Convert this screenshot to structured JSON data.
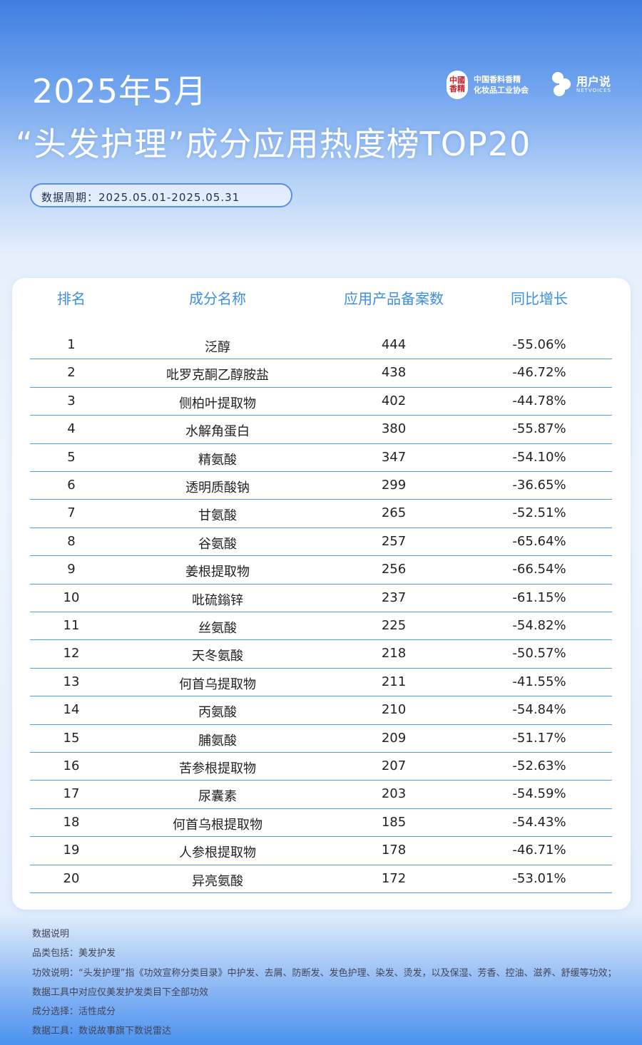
{
  "header": {
    "title_line1": "2025年5月",
    "title_line2": "“头发护理”成分应用热度榜TOP20",
    "period": "数据周期：2025.05.01-2025.05.31"
  },
  "logos": {
    "org_seal": "中国香精",
    "org_name_line1": "中国香料香精",
    "org_name_line2": "化妆品工业协会",
    "brand_name": "用户说",
    "brand_en": "NETVOICES"
  },
  "table": {
    "columns": [
      "排名",
      "成分名称",
      "应用产品备案数",
      "同比增长"
    ],
    "rows": [
      [
        "1",
        "泛醇",
        "444",
        "-55.06%"
      ],
      [
        "2",
        "吡罗克酮乙醇胺盐",
        "438",
        "-46.72%"
      ],
      [
        "3",
        "侧柏叶提取物",
        "402",
        "-44.78%"
      ],
      [
        "4",
        "水解角蛋白",
        "380",
        "-55.87%"
      ],
      [
        "5",
        "精氨酸",
        "347",
        "-54.10%"
      ],
      [
        "6",
        "透明质酸钠",
        "299",
        "-36.65%"
      ],
      [
        "7",
        "甘氨酸",
        "265",
        "-52.51%"
      ],
      [
        "8",
        "谷氨酸",
        "257",
        "-65.64%"
      ],
      [
        "9",
        "姜根提取物",
        "256",
        "-66.54%"
      ],
      [
        "10",
        "吡硫鎓锌",
        "237",
        "-61.15%"
      ],
      [
        "11",
        "丝氨酸",
        "225",
        "-54.82%"
      ],
      [
        "12",
        "天冬氨酸",
        "218",
        "-50.57%"
      ],
      [
        "13",
        "何首乌提取物",
        "211",
        "-41.55%"
      ],
      [
        "14",
        "丙氨酸",
        "210",
        "-54.84%"
      ],
      [
        "15",
        "脯氨酸",
        "209",
        "-51.17%"
      ],
      [
        "16",
        "苦参根提取物",
        "207",
        "-52.63%"
      ],
      [
        "17",
        "尿囊素",
        "203",
        "-54.59%"
      ],
      [
        "18",
        "何首乌根提取物",
        "185",
        "-54.43%"
      ],
      [
        "19",
        "人参根提取物",
        "178",
        "-46.71%"
      ],
      [
        "20",
        "异亮氨酸",
        "172",
        "-53.01%"
      ]
    ]
  },
  "notes": [
    "数据说明",
    "品类包括：美发护发",
    "功效说明：“头发护理”指《功效宣称分类目录》中护发、去屑、防断发、发色护理、染发、烫发，以及保湿、芳香、控油、滋养、舒缓等功效；数据工具中对应仅美发护发类目下全部功效",
    "成分选择：活性成分",
    "数据工具：数说故事旗下数说雷达"
  ],
  "colors": {
    "accent": "#3a8ee6",
    "background_top": "#3f7fe0"
  }
}
